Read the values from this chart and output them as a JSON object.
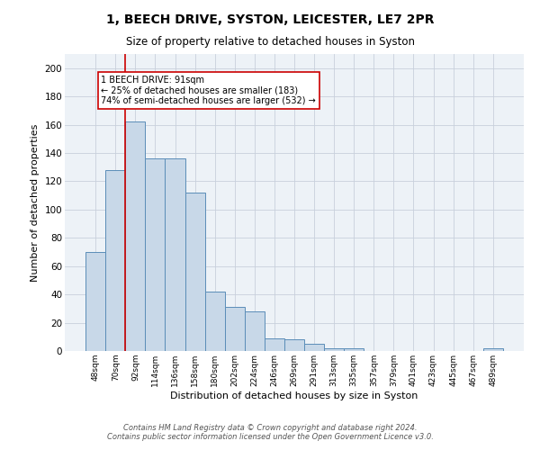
{
  "title1": "1, BEECH DRIVE, SYSTON, LEICESTER, LE7 2PR",
  "title2": "Size of property relative to detached houses in Syston",
  "xlabel": "Distribution of detached houses by size in Syston",
  "ylabel": "Number of detached properties",
  "bar_labels": [
    "48sqm",
    "70sqm",
    "92sqm",
    "114sqm",
    "136sqm",
    "158sqm",
    "180sqm",
    "202sqm",
    "224sqm",
    "246sqm",
    "269sqm",
    "291sqm",
    "313sqm",
    "335sqm",
    "357sqm",
    "379sqm",
    "401sqm",
    "423sqm",
    "445sqm",
    "467sqm",
    "489sqm"
  ],
  "bar_values": [
    70,
    128,
    162,
    136,
    136,
    112,
    42,
    31,
    28,
    9,
    8,
    5,
    2,
    2,
    0,
    0,
    0,
    0,
    0,
    0,
    2
  ],
  "bar_color": "#c8d8e8",
  "bar_edge_color": "#5b8db8",
  "vline_color": "#cc0000",
  "annotation_text": "1 BEECH DRIVE: 91sqm\n← 25% of detached houses are smaller (183)\n74% of semi-detached houses are larger (532) →",
  "annotation_box_color": "#ffffff",
  "annotation_box_edge": "#cc0000",
  "ylim": [
    0,
    210
  ],
  "yticks": [
    0,
    20,
    40,
    60,
    80,
    100,
    120,
    140,
    160,
    180,
    200
  ],
  "footer1": "Contains HM Land Registry data © Crown copyright and database right 2024.",
  "footer2": "Contains public sector information licensed under the Open Government Licence v3.0.",
  "bg_color": "#edf2f7",
  "grid_color": "#c8d0dc"
}
